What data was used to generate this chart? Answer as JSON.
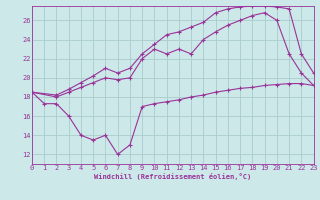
{
  "xlabel": "Windchill (Refroidissement éolien,°C)",
  "bg_color": "#cce8e8",
  "line_color": "#993399",
  "grid_color": "#aacccc",
  "xmin": 0,
  "xmax": 23,
  "ymin": 11,
  "ymax": 27.5,
  "yticks": [
    12,
    14,
    16,
    18,
    20,
    22,
    24,
    26
  ],
  "xticks": [
    0,
    1,
    2,
    3,
    4,
    5,
    6,
    7,
    8,
    9,
    10,
    11,
    12,
    13,
    14,
    15,
    16,
    17,
    18,
    19,
    20,
    21,
    22,
    23
  ],
  "series1_x": [
    0,
    1,
    2,
    3,
    4,
    5,
    6,
    7,
    8,
    9,
    10,
    11,
    12,
    13,
    14,
    15,
    16,
    17,
    18,
    19,
    20,
    21,
    22,
    23
  ],
  "series1_y": [
    18.5,
    17.3,
    17.3,
    16.0,
    14.0,
    13.5,
    14.0,
    12.0,
    13.0,
    17.0,
    17.3,
    17.5,
    17.7,
    18.0,
    18.2,
    18.5,
    18.7,
    18.9,
    19.0,
    19.2,
    19.3,
    19.4,
    19.4,
    19.2
  ],
  "series2_x": [
    0,
    2,
    3,
    4,
    5,
    6,
    7,
    8,
    9,
    10,
    11,
    12,
    13,
    14,
    15,
    16,
    17,
    18,
    19,
    20,
    21,
    22,
    23
  ],
  "series2_y": [
    18.5,
    18.0,
    18.5,
    19.0,
    19.5,
    20.0,
    19.8,
    20.0,
    22.0,
    23.0,
    22.5,
    23.0,
    22.5,
    24.0,
    24.8,
    25.5,
    26.0,
    26.5,
    26.8,
    26.0,
    22.5,
    20.5,
    19.2
  ],
  "series3_x": [
    0,
    2,
    3,
    4,
    5,
    6,
    7,
    8,
    9,
    10,
    11,
    12,
    13,
    14,
    15,
    16,
    17,
    18,
    19,
    20,
    21,
    22,
    23
  ],
  "series3_y": [
    18.5,
    18.2,
    18.8,
    19.5,
    20.2,
    21.0,
    20.5,
    21.0,
    22.5,
    23.5,
    24.5,
    24.8,
    25.3,
    25.8,
    26.8,
    27.2,
    27.4,
    27.5,
    27.5,
    27.4,
    27.2,
    22.5,
    20.5
  ]
}
